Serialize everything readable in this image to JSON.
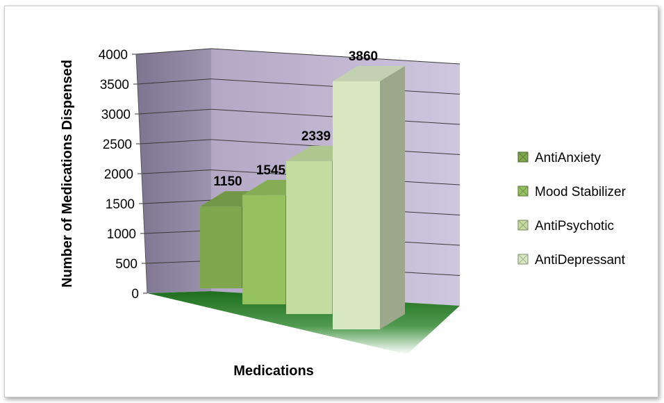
{
  "chart_data": {
    "type": "bar",
    "categories": [
      "AntiAnxiety",
      "Mood Stabilizer",
      "AntiPsychotic",
      "AntiDepressant"
    ],
    "values": [
      1150,
      1545,
      2339,
      3860
    ],
    "data_labels": [
      "1150",
      "1545",
      "2339",
      "3860"
    ],
    "xlabel": "Medications",
    "ylabel": "Number of Medications Dispensed",
    "ylim": [
      0,
      4000
    ],
    "yticks": [
      "0",
      "500",
      "1000",
      "1500",
      "2000",
      "2500",
      "3000",
      "3500",
      "4000"
    ],
    "legend_position": "right",
    "grid": true,
    "style": "3d-column",
    "colors": {
      "AntiAnxiety": "#7fa84e",
      "Mood Stabilizer": "#95c05e",
      "AntiPsychotic": "#c4dc9f",
      "AntiDepressant": "#d8e8c2"
    }
  }
}
